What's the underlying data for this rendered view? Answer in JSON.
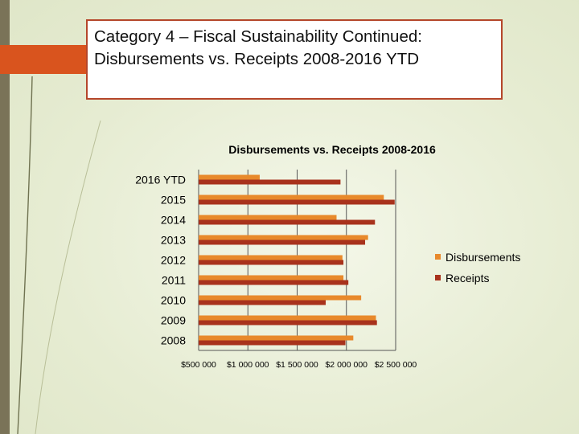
{
  "slide": {
    "title_line1": "Category 4 – Fiscal Sustainability Continued:",
    "title_line2": "Disbursements vs. Receipts 2008-2016 YTD"
  },
  "colors": {
    "disbursements": "#e8892b",
    "receipts": "#a8321c",
    "title_border": "#b5462a",
    "accent": "#d9541e"
  },
  "chart_data": {
    "type": "bar",
    "orientation": "horizontal",
    "title": "Disbursements vs. Receipts 2008-2016",
    "categories": [
      "2016 YTD",
      "2015",
      "2014",
      "2013",
      "2012",
      "2011",
      "2010",
      "2009",
      "2008"
    ],
    "series": [
      {
        "name": "Disbursements",
        "values": [
          1120000,
          2380000,
          1900000,
          2220000,
          1960000,
          1970000,
          2150000,
          2300000,
          2070000
        ]
      },
      {
        "name": "Receipts",
        "values": [
          1940000,
          2490000,
          2290000,
          2190000,
          1970000,
          2020000,
          1790000,
          2310000,
          1990000
        ]
      }
    ],
    "xlim": [
      500000,
      2500000
    ],
    "xticks": [
      500000,
      1000000,
      1500000,
      2000000,
      2500000
    ],
    "xtick_labels": [
      "$500 000",
      "$1 000 000",
      "$1 500 000",
      "$2 000 000",
      "$2 500 000"
    ],
    "grid": true,
    "legend": "right"
  }
}
